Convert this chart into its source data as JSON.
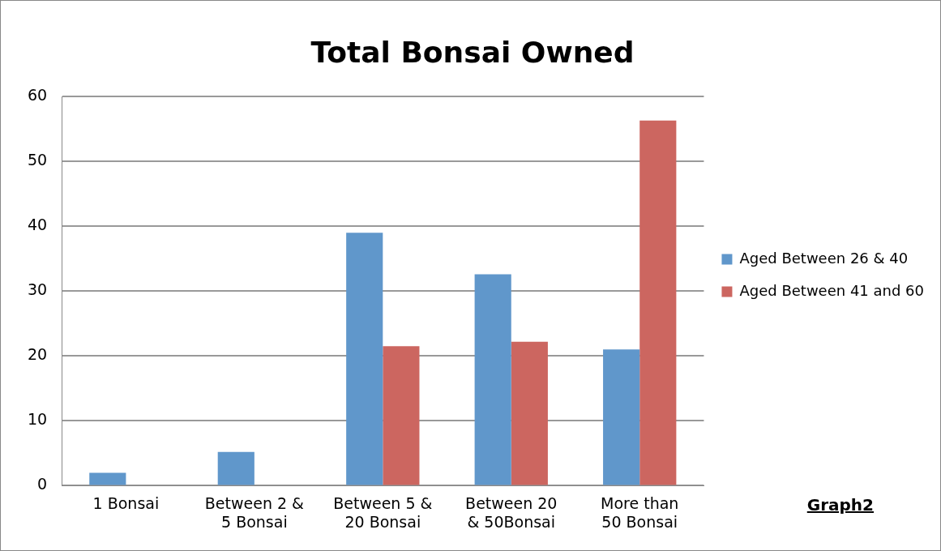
{
  "chart_data": {
    "type": "bar",
    "title": "Total Bonsai Owned",
    "categories": [
      "1 Bonsai",
      "Between 2 & 5 Bonsai",
      "Between 5 & 20 Bonsai",
      "Between 20 & 50Bonsai",
      "More than 50 Bonsai"
    ],
    "series": [
      {
        "name": "Aged Between 26 & 40",
        "color": "#6097cb",
        "values": [
          2.0,
          5.2,
          39.0,
          32.6,
          21.0
        ]
      },
      {
        "name": "Aged Between 41 and 60",
        "color": "#cc6660",
        "values": [
          null,
          null,
          21.5,
          22.2,
          56.3
        ]
      }
    ],
    "ylim": [
      0,
      60
    ],
    "yticks": [
      0,
      10,
      20,
      30,
      40,
      50,
      60
    ],
    "grid": "y",
    "legend": "right",
    "annotations": [
      "Graph2"
    ]
  }
}
